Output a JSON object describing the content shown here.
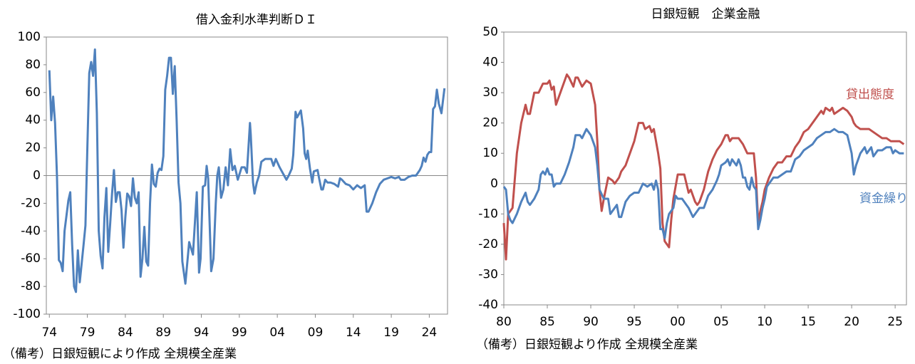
{
  "chart_data": [
    {
      "type": "line",
      "title": "借入金利水準判断ＤＩ",
      "note": "（備考）日銀短観により作成 全規模全産業",
      "xlim": [
        1973.6,
        2026.4
      ],
      "ylim": [
        -100,
        100
      ],
      "yticks": [
        -100,
        -80,
        -60,
        -40,
        -20,
        0,
        20,
        40,
        60,
        80,
        100
      ],
      "xticks": [
        {
          "value": 1974,
          "label": "74"
        },
        {
          "value": 1979,
          "label": "79"
        },
        {
          "value": 1984,
          "label": "84"
        },
        {
          "value": 1989,
          "label": "89"
        },
        {
          "value": 1994,
          "label": "94"
        },
        {
          "value": 1999,
          "label": "99"
        },
        {
          "value": 2004,
          "label": "04"
        },
        {
          "value": 2009,
          "label": "09"
        },
        {
          "value": 2014,
          "label": "14"
        },
        {
          "value": 2019,
          "label": "19"
        },
        {
          "value": 2024,
          "label": "24"
        }
      ],
      "series": [
        {
          "color": "#4f81bd",
          "x": [
            1974.0,
            1974.25,
            1974.5,
            1974.75,
            1975.0,
            1975.25,
            1975.5,
            1975.75,
            1976.0,
            1976.5,
            1976.75,
            1977.0,
            1977.25,
            1977.5,
            1977.75,
            1978.0,
            1978.5,
            1978.75,
            1979.0,
            1979.25,
            1979.5,
            1979.75,
            1980.0,
            1980.25,
            1980.5,
            1980.75,
            1981.0,
            1981.25,
            1981.5,
            1981.75,
            1982.0,
            1982.25,
            1982.5,
            1982.75,
            1983.0,
            1983.25,
            1983.5,
            1983.75,
            1984.0,
            1984.25,
            1984.5,
            1984.75,
            1985.0,
            1985.25,
            1985.5,
            1985.75,
            1986.0,
            1986.25,
            1986.5,
            1986.75,
            1987.0,
            1987.25,
            1987.5,
            1987.75,
            1988.0,
            1988.25,
            1988.5,
            1988.75,
            1989.0,
            1989.25,
            1989.5,
            1989.75,
            1990.0,
            1990.25,
            1990.5,
            1990.75,
            1991.0,
            1991.25,
            1991.5,
            1991.9,
            1992.4,
            1992.9,
            1993.4,
            1993.7,
            1993.9,
            1994.2,
            1994.5,
            1994.7,
            1994.9,
            1995.3,
            1995.6,
            1995.9,
            1996.1,
            1996.3,
            1996.6,
            1996.9,
            1997.2,
            1997.5,
            1997.8,
            1998.1,
            1998.4,
            1998.8,
            1999.3,
            1999.7,
            2000.0,
            2000.4,
            2000.5,
            2000.8,
            2001.0,
            2001.3,
            2001.6,
            2001.9,
            2002.4,
            2003.2,
            2003.5,
            2003.8,
            2004.3,
            2004.9,
            2005.2,
            2005.5,
            2005.9,
            2006.1,
            2006.4,
            2006.6,
            2006.9,
            2007.1,
            2007.4,
            2007.6,
            2007.8,
            2008.0,
            2008.3,
            2008.6,
            2008.8,
            2009.3,
            2009.5,
            2009.8,
            2010.0,
            2010.3,
            2010.6,
            2011.0,
            2011.5,
            2012.0,
            2012.25,
            2012.5,
            2013.0,
            2013.5,
            2014.0,
            2014.5,
            2015.0,
            2015.5,
            2015.75,
            2016.0,
            2016.5,
            2017.0,
            2017.5,
            2018.0,
            2018.5,
            2019.0,
            2019.5,
            2020.0,
            2020.25,
            2020.75,
            2021.25,
            2021.75,
            2022.25,
            2022.75,
            2023.0,
            2023.25,
            2023.5,
            2023.75,
            2024.0,
            2024.25,
            2024.5,
            2024.75,
            2025.0,
            2025.25,
            2025.6,
            2026.0
          ],
          "values": [
            76,
            40,
            57,
            38,
            0,
            -61,
            -63,
            -69,
            -40,
            -18,
            -12,
            -50,
            -80,
            -84,
            -54,
            -77,
            -50,
            -36,
            20,
            74,
            82,
            72,
            91,
            45,
            -40,
            -58,
            -67,
            -30,
            -9,
            -55,
            -35,
            -13,
            4,
            -19,
            -12,
            -12,
            -25,
            -52,
            -30,
            -13,
            -15,
            -22,
            -2,
            -16,
            -20,
            -12,
            -73,
            -60,
            -37,
            -62,
            -65,
            -20,
            8,
            -6,
            -8,
            2,
            5,
            4,
            14,
            62,
            72,
            85,
            85,
            59,
            79,
            40,
            -5,
            -20,
            -62,
            -78,
            -48,
            -57,
            -12,
            -70,
            -60,
            -8,
            -7,
            7,
            -2,
            -69,
            -60,
            -20,
            0,
            6,
            -16,
            -10,
            6,
            -7,
            19,
            4,
            7,
            -3,
            6,
            6,
            2,
            38,
            30,
            -5,
            -13,
            -5,
            0,
            10,
            12,
            12,
            7,
            12,
            6,
            0,
            -3,
            0,
            5,
            15,
            46,
            42,
            45,
            47,
            34,
            16,
            12,
            18,
            5,
            -5,
            3,
            4,
            -2,
            -10,
            -10,
            -3,
            -5,
            -5,
            -6,
            -8,
            -2,
            -3,
            -6,
            -7,
            -10,
            -7,
            -9,
            -7,
            -26,
            -26,
            -20,
            -12,
            -6,
            -3,
            -2,
            -1,
            -2,
            -1,
            -3,
            -3,
            -1,
            0,
            0,
            4,
            7,
            13,
            10,
            15,
            17,
            17,
            48,
            50,
            62,
            52,
            45,
            63
          ]
        }
      ]
    },
    {
      "type": "line",
      "title": "日銀短観　企業金融",
      "note": "（備考）日銀短観より作成 全規模全産業",
      "xlim": [
        1980,
        2026.3
      ],
      "ylim": [
        -40,
        50
      ],
      "yticks": [
        -40,
        -30,
        -20,
        -10,
        0,
        10,
        20,
        30,
        40,
        50
      ],
      "xticks": [
        {
          "value": 1980,
          "label": "80"
        },
        {
          "value": 1985,
          "label": "85"
        },
        {
          "value": 1990,
          "label": "90"
        },
        {
          "value": 1995,
          "label": "95"
        },
        {
          "value": 2000,
          "label": "00"
        },
        {
          "value": 2005,
          "label": "05"
        },
        {
          "value": 2010,
          "label": "10"
        },
        {
          "value": 2015,
          "label": "15"
        },
        {
          "value": 2020,
          "label": "20"
        },
        {
          "value": 2025,
          "label": "25"
        }
      ],
      "series": [
        {
          "name": "貸出態度",
          "color": "#c0504d",
          "x": [
            1980.0,
            1980.25,
            1980.5,
            1981.0,
            1981.5,
            1982.0,
            1982.5,
            1982.75,
            1983.0,
            1983.5,
            1984.0,
            1984.5,
            1985.0,
            1985.25,
            1985.5,
            1985.75,
            1986.0,
            1986.5,
            1987.0,
            1987.25,
            1987.5,
            1988.0,
            1988.25,
            1988.5,
            1989.0,
            1989.5,
            1990.0,
            1990.5,
            1990.75,
            1991.0,
            1991.25,
            1991.5,
            1992.0,
            1992.5,
            1992.75,
            1993.25,
            1993.5,
            1994.0,
            1994.5,
            1995.0,
            1995.5,
            1996.0,
            1996.25,
            1996.75,
            1997.0,
            1997.25,
            1997.5,
            1997.75,
            1998.0,
            1998.25,
            1998.5,
            1998.75,
            1999.0,
            1999.25,
            1999.5,
            2000.0,
            2000.5,
            2000.75,
            2001.0,
            2001.25,
            2001.5,
            2002.0,
            2002.25,
            2002.5,
            2003.0,
            2003.5,
            2004.0,
            2004.5,
            2005.0,
            2005.5,
            2005.75,
            2006.0,
            2006.25,
            2007.0,
            2007.5,
            2008.0,
            2008.25,
            2008.75,
            2009.0,
            2009.25,
            2009.5,
            2009.75,
            2010.0,
            2010.5,
            2011.0,
            2011.5,
            2012.0,
            2012.5,
            2013.0,
            2013.5,
            2014.0,
            2014.5,
            2015.0,
            2015.5,
            2016.0,
            2016.5,
            2016.75,
            2017.0,
            2017.5,
            2017.75,
            2018.0,
            2018.5,
            2019.0,
            2019.5,
            2020.0,
            2020.25,
            2020.5,
            2021.0,
            2021.5,
            2022.0,
            2022.5,
            2023.0,
            2023.5,
            2024.0,
            2024.5,
            2025.0,
            2025.5,
            2026.0
          ],
          "values": [
            -13,
            -25,
            -10,
            -8,
            10,
            20,
            26,
            23,
            23,
            30,
            30,
            33,
            33,
            34,
            31,
            32,
            26,
            30,
            34,
            36,
            35,
            32,
            35,
            35,
            32,
            34,
            33,
            26,
            14,
            -2,
            -9,
            -5,
            2,
            1,
            0,
            2,
            4,
            6,
            10,
            14,
            20,
            20,
            18,
            19,
            17,
            18,
            14,
            10,
            5,
            -13,
            -19,
            -20,
            -21,
            -12,
            -5,
            3,
            3,
            3,
            0,
            -3,
            -2,
            -6,
            -7,
            -6,
            -2,
            4,
            8,
            11,
            13,
            16,
            16,
            14,
            15,
            15,
            13,
            10,
            10,
            10,
            2,
            -13,
            -9,
            -6,
            -2,
            2,
            5,
            7,
            7,
            9,
            9,
            12,
            14,
            17,
            18,
            20,
            22,
            24,
            23,
            25,
            24,
            25,
            23,
            24,
            25,
            24,
            22,
            20,
            19,
            18,
            18,
            18,
            17,
            16,
            15,
            15,
            14,
            14,
            14,
            13
          ]
        },
        {
          "name": "資金繰り",
          "color": "#4f81bd",
          "x": [
            1980.0,
            1980.25,
            1980.5,
            1980.75,
            1981.0,
            1981.5,
            1982.0,
            1982.5,
            1982.75,
            1983.0,
            1983.5,
            1984.0,
            1984.25,
            1984.5,
            1984.75,
            1985.0,
            1985.25,
            1985.5,
            1985.75,
            1986.0,
            1986.5,
            1987.0,
            1987.5,
            1988.0,
            1988.25,
            1988.75,
            1989.0,
            1989.5,
            1990.0,
            1990.5,
            1990.75,
            1991.0,
            1991.5,
            1992.0,
            1992.25,
            1992.5,
            1993.0,
            1993.25,
            1993.5,
            1994.0,
            1994.5,
            1995.0,
            1995.5,
            1996.0,
            1996.5,
            1997.0,
            1997.25,
            1997.5,
            1997.75,
            1998.0,
            1998.25,
            1998.5,
            1998.75,
            1999.0,
            1999.5,
            1999.75,
            2000.0,
            2000.5,
            2001.0,
            2001.25,
            2001.75,
            2002.0,
            2002.5,
            2003.0,
            2003.25,
            2003.5,
            2004.0,
            2004.5,
            2004.75,
            2005.0,
            2005.5,
            2005.75,
            2006.0,
            2006.25,
            2006.75,
            2007.0,
            2007.25,
            2007.5,
            2007.75,
            2008.0,
            2008.25,
            2008.5,
            2008.75,
            2009.0,
            2009.25,
            2009.5,
            2009.75,
            2010.0,
            2010.25,
            2010.5,
            2011.0,
            2011.5,
            2012.0,
            2012.5,
            2013.0,
            2013.5,
            2014.0,
            2014.5,
            2015.0,
            2015.5,
            2016.0,
            2016.5,
            2017.0,
            2017.5,
            2018.0,
            2018.5,
            2019.0,
            2019.5,
            2020.0,
            2020.25,
            2020.5,
            2021.0,
            2021.5,
            2021.75,
            2022.0,
            2022.25,
            2022.5,
            2023.0,
            2023.5,
            2024.0,
            2024.5,
            2024.75,
            2025.0,
            2025.5,
            2026.0
          ],
          "values": [
            -1,
            -2,
            -10,
            -12,
            -13,
            -10,
            -6,
            -3,
            -6,
            -7,
            -5,
            -2,
            3,
            4,
            3,
            5,
            3,
            3,
            -1,
            0,
            0,
            3,
            7,
            12,
            16,
            16,
            15,
            18,
            16,
            12,
            6,
            -2,
            -5,
            -5,
            -10,
            -9,
            -7,
            -11,
            -11,
            -6,
            -4,
            -3,
            -3,
            0,
            -1,
            0,
            -2,
            1,
            -2,
            -15,
            -15,
            -18,
            -13,
            -10,
            -8,
            -4,
            -5,
            -5,
            -7,
            -8,
            -11,
            -10,
            -8,
            -8,
            -6,
            -4,
            -2,
            1,
            3,
            6,
            7,
            8,
            6,
            8,
            6,
            8,
            6,
            2,
            2,
            -1,
            -2,
            2,
            -1,
            -2,
            -15,
            -12,
            -8,
            -5,
            -1,
            0,
            2,
            2,
            3,
            4,
            4,
            8,
            9,
            11,
            12,
            13,
            15,
            16,
            17,
            17,
            18,
            17,
            17,
            16,
            10,
            3,
            6,
            10,
            12,
            10,
            11,
            12,
            9,
            11,
            11,
            12,
            12,
            10,
            11,
            10,
            10
          ]
        }
      ]
    }
  ]
}
